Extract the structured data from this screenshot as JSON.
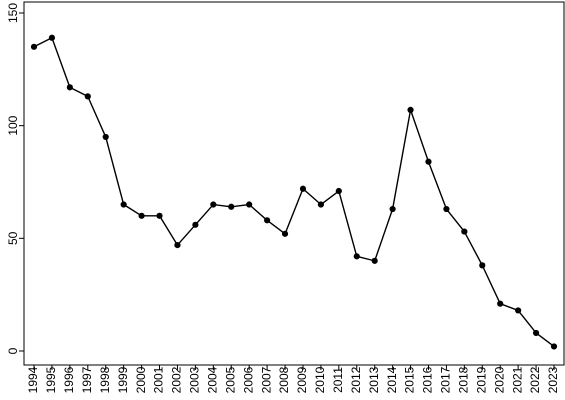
{
  "chart_data": {
    "type": "line",
    "title": "",
    "xlabel": "",
    "ylabel": "",
    "x": [
      1994,
      1995,
      1996,
      1997,
      1998,
      1999,
      2000,
      2001,
      2002,
      2003,
      2004,
      2005,
      2006,
      2007,
      2008,
      2009,
      2010,
      2011,
      2012,
      2013,
      2014,
      2015,
      2016,
      2017,
      2018,
      2019,
      2020,
      2021,
      2022,
      2023
    ],
    "x_tick_labels": [
      "1994",
      "1995",
      "1996",
      "1997",
      "1998",
      "1999",
      "2000",
      "2001",
      "2002",
      "2003",
      "2004",
      "2005",
      "2006",
      "2007",
      "2008",
      "2009",
      "2010",
      "2011",
      "2012",
      "2013",
      "2014",
      "2015",
      "2016",
      "2017",
      "2018",
      "2019",
      "2020",
      "2021",
      "2022",
      "2023"
    ],
    "series": [
      {
        "values": [
          135,
          139,
          117,
          113,
          95,
          65,
          60,
          60,
          47,
          56,
          65,
          64,
          65,
          58,
          52,
          72,
          65,
          71,
          42,
          40,
          63,
          107,
          84,
          63,
          53,
          38,
          21,
          18,
          8,
          2
        ],
        "color": "#000000",
        "marker": "circle"
      }
    ],
    "ylim": [
      0,
      150
    ],
    "y_ticks": [
      0,
      50,
      100,
      150
    ],
    "y_tick_labels": [
      "0",
      "50",
      "100",
      "150"
    ],
    "grid": false,
    "legend": "none"
  }
}
